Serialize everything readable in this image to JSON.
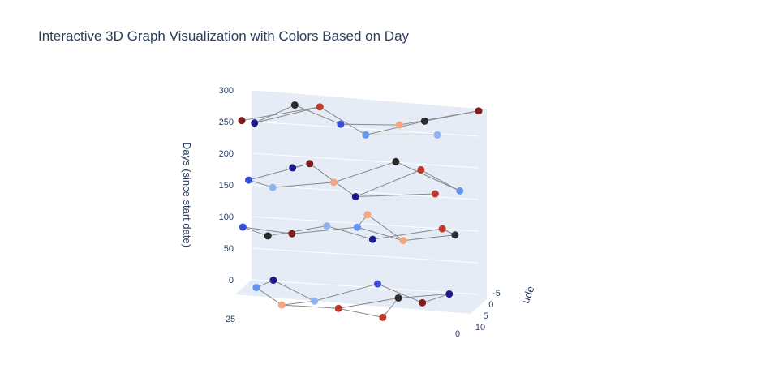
{
  "chart_data": {
    "type": "scatter3d",
    "title": "Interactive 3D Graph Visualization with Colors Based on Day",
    "zlabel": "Days (since start date)",
    "ylabel": "ude",
    "xlim": [
      0,
      25
    ],
    "ylim": [
      -5,
      10
    ],
    "zlim": [
      0,
      300
    ],
    "xticks": [
      0,
      25
    ],
    "yticks": [
      -5,
      0,
      5,
      10
    ],
    "zticks": [
      0,
      50,
      100,
      150,
      200,
      250,
      300
    ],
    "x": [
      3,
      8,
      14,
      20,
      24,
      5,
      11,
      17,
      22,
      9,
      2,
      7,
      13,
      19,
      25,
      4,
      10,
      16,
      22,
      12,
      1,
      6,
      12,
      18,
      24,
      9,
      15,
      21,
      3,
      20,
      0,
      5,
      11,
      17,
      23,
      8,
      14,
      20,
      3,
      25
    ],
    "y": [
      -3,
      2,
      7,
      9,
      -1,
      5,
      -4,
      4,
      0,
      8,
      0,
      6,
      -2,
      8,
      3,
      -5,
      9,
      1,
      5,
      -3,
      4,
      -2,
      8,
      0,
      6,
      -4,
      3,
      9,
      10,
      -1,
      -5,
      3,
      7,
      -1,
      9,
      1,
      5,
      -3,
      8,
      4
    ],
    "z": [
      5,
      12,
      8,
      15,
      3,
      18,
      10,
      6,
      20,
      2,
      110,
      118,
      105,
      125,
      112,
      100,
      128,
      115,
      108,
      122,
      195,
      202,
      190,
      208,
      198,
      205,
      192,
      200,
      210,
      196,
      290,
      298,
      285,
      295,
      300,
      282,
      292,
      288,
      296,
      284
    ],
    "colors": [
      "#1c1c8c",
      "#2b2b2b",
      "#c0392b",
      "#f4a582",
      "#6495ed",
      "#7f1d1d",
      "#3a4fd8",
      "#8fb3f0",
      "#1c1c8c",
      "#c0392b",
      "#2b2b2b",
      "#f4a582",
      "#6495ed",
      "#7f1d1d",
      "#3a4fd8",
      "#c0392b",
      "#1c1c8c",
      "#8fb3f0",
      "#2b2b2b",
      "#f4a582",
      "#6495ed",
      "#c0392b",
      "#1c1c8c",
      "#7f1d1d",
      "#3a4fd8",
      "#2b2b2b",
      "#f4a582",
      "#8fb3f0",
      "#c0392b",
      "#1c1c8c",
      "#7f1d1d",
      "#2b2b2b",
      "#6495ed",
      "#c0392b",
      "#1c1c8c",
      "#f4a582",
      "#3a4fd8",
      "#2b2b2b",
      "#8fb3f0",
      "#7f1d1d"
    ],
    "edges": [
      [
        0,
        1
      ],
      [
        1,
        2
      ],
      [
        2,
        3
      ],
      [
        3,
        4
      ],
      [
        4,
        8
      ],
      [
        5,
        6
      ],
      [
        6,
        7
      ],
      [
        7,
        8
      ],
      [
        9,
        2
      ],
      [
        0,
        5
      ],
      [
        1,
        9
      ],
      [
        3,
        7
      ],
      [
        10,
        11
      ],
      [
        11,
        12
      ],
      [
        12,
        13
      ],
      [
        13,
        14
      ],
      [
        15,
        16
      ],
      [
        16,
        17
      ],
      [
        17,
        18
      ],
      [
        19,
        12
      ],
      [
        10,
        15
      ],
      [
        14,
        18
      ],
      [
        11,
        19
      ],
      [
        20,
        21
      ],
      [
        21,
        22
      ],
      [
        22,
        23
      ],
      [
        23,
        24
      ],
      [
        25,
        26
      ],
      [
        26,
        27
      ],
      [
        28,
        22
      ],
      [
        29,
        23
      ],
      [
        20,
        25
      ],
      [
        24,
        27
      ],
      [
        30,
        31
      ],
      [
        31,
        32
      ],
      [
        32,
        33
      ],
      [
        33,
        34
      ],
      [
        35,
        36
      ],
      [
        36,
        37
      ],
      [
        38,
        32
      ],
      [
        39,
        33
      ],
      [
        30,
        35
      ],
      [
        34,
        37
      ]
    ]
  }
}
